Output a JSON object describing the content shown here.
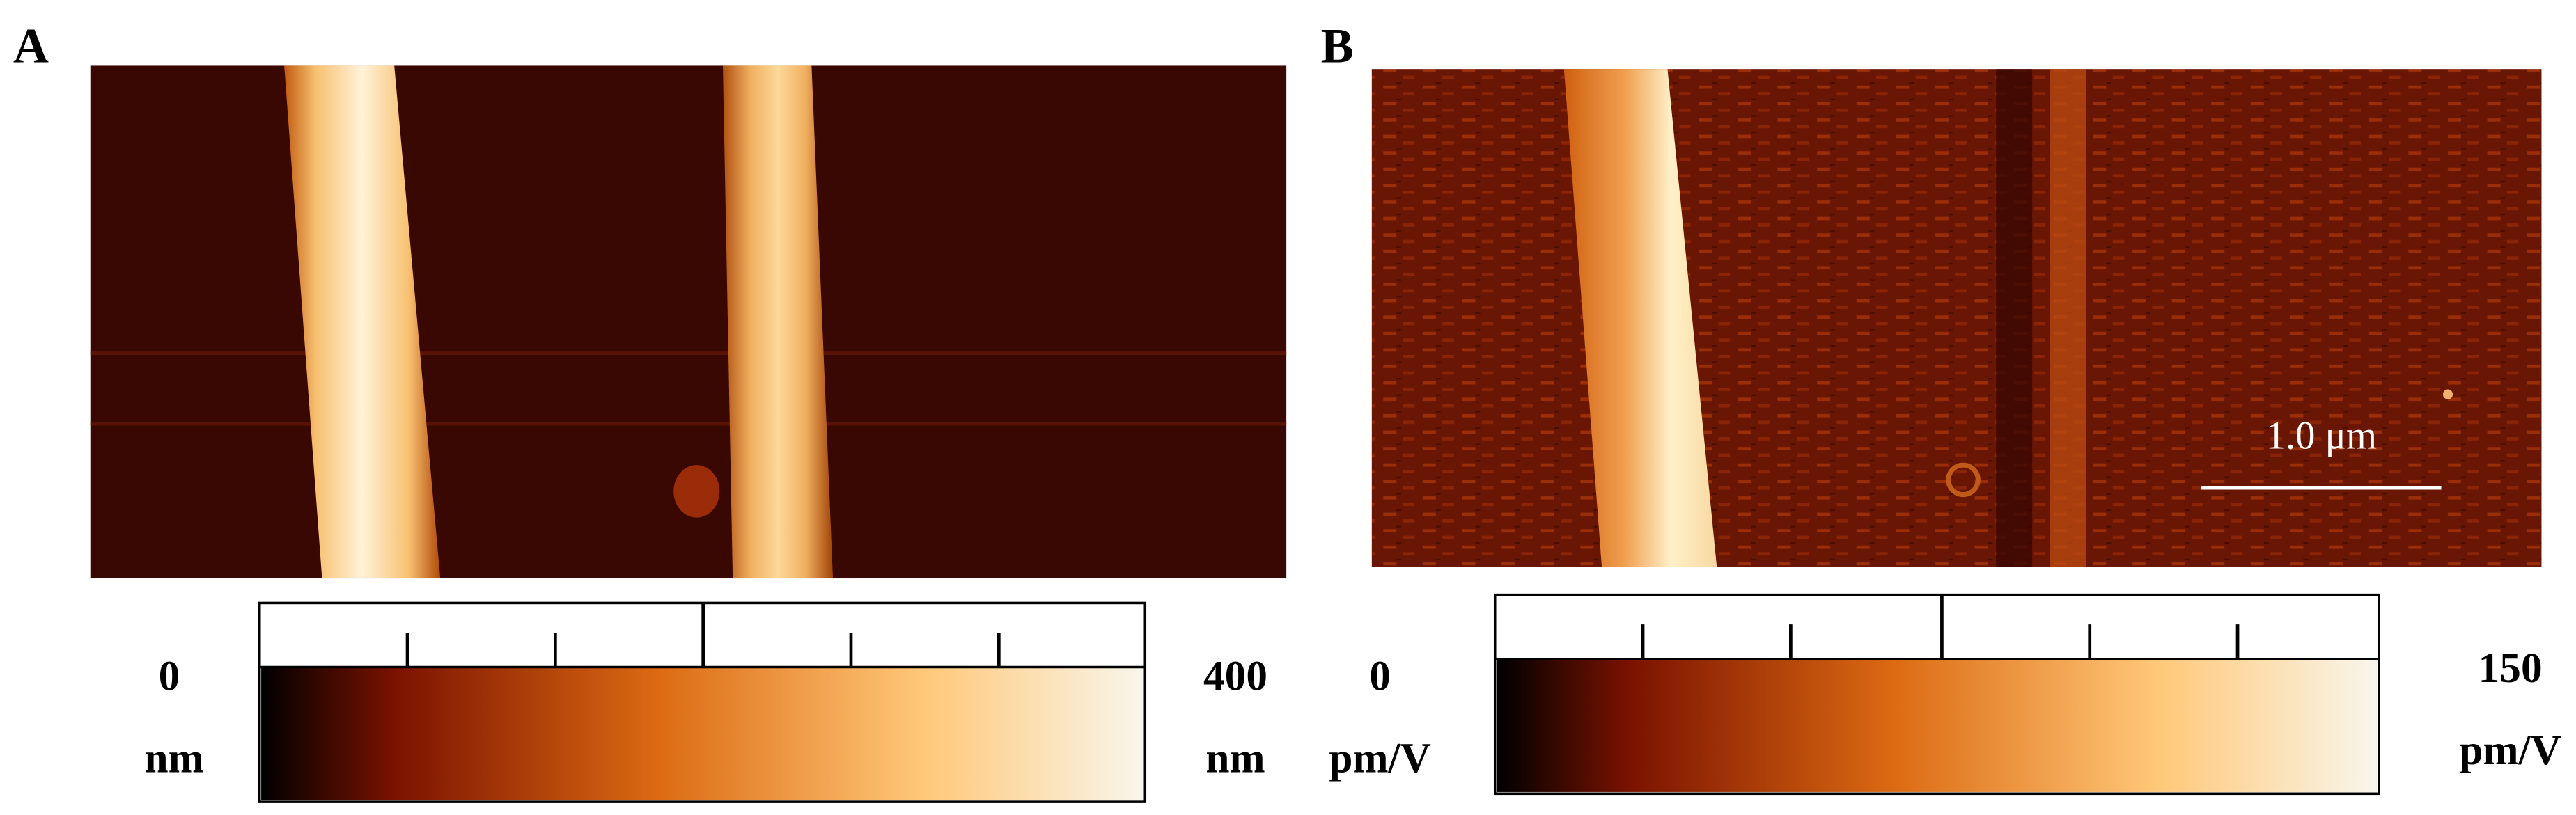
{
  "panels": [
    {
      "label": "A",
      "colorbar": {
        "min_label": "0",
        "min_unit": "nm",
        "max_label": "400",
        "max_unit": "nm"
      }
    },
    {
      "label": "B",
      "colorbar": {
        "min_label": "0",
        "min_unit": "pm/V",
        "max_label": "150",
        "max_unit": "pm/V"
      },
      "scale_bar": "1.0 μm"
    }
  ]
}
